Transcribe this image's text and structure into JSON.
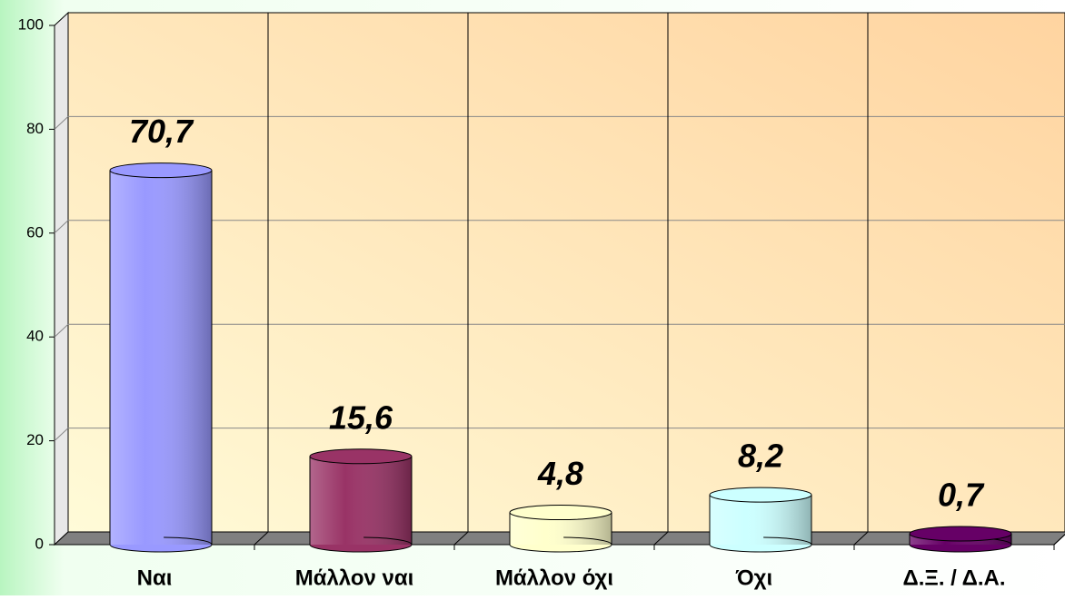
{
  "chart_data": {
    "type": "bar",
    "categories": [
      "Ναι",
      "Μάλλον ναι",
      "Μάλλον όχι",
      "Όχι",
      "Δ.Ξ. / Δ.Α."
    ],
    "values": [
      70.7,
      15.6,
      4.8,
      8.2,
      0.7
    ],
    "value_labels": [
      "70,7",
      "15,6",
      "4,8",
      "8,2",
      "0,7"
    ],
    "colors": [
      "#9999ff",
      "#993366",
      "#ffffcc",
      "#ccffff",
      "#660066"
    ],
    "ylim": [
      0,
      100
    ],
    "yticks": [
      0,
      20,
      40,
      60,
      80,
      100
    ],
    "grid": true
  }
}
